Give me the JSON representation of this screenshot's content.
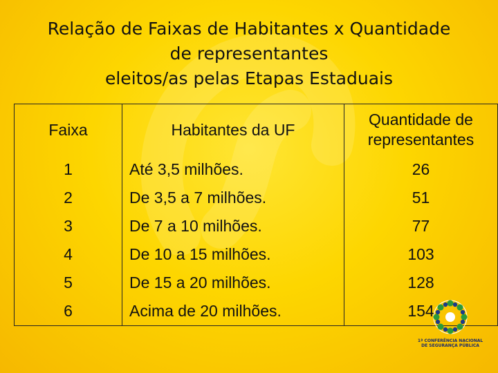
{
  "title": {
    "line1": "Relação de Faixas de Habitantes x Quantidade",
    "line2": "de representantes",
    "line3": "eleitos/as pelas Etapas Estaduais"
  },
  "table": {
    "headers": {
      "faixa": "Faixa",
      "habitantes": "Habitantes da UF",
      "quantidade_line1": "Quantidade de",
      "quantidade_line2": "representantes"
    },
    "rows": [
      {
        "faixa": "1",
        "habitantes": "Até 3,5 milhões.",
        "quantidade": "26"
      },
      {
        "faixa": "2",
        "habitantes": "De 3,5 a 7 milhões.",
        "quantidade": "51"
      },
      {
        "faixa": "3",
        "habitantes": "De 7 a 10 milhões.",
        "quantidade": "77"
      },
      {
        "faixa": "4",
        "habitantes": "De 10 a 15 milhões.",
        "quantidade": "103"
      },
      {
        "faixa": "5",
        "habitantes": "De 15 a 20 milhões.",
        "quantidade": "128"
      },
      {
        "faixa": "6",
        "habitantes": "Acima de 20 milhões.",
        "quantidade": "154"
      }
    ]
  },
  "logo": {
    "line1": "1ª CONFERÊNCIA NACIONAL",
    "line2": "DE SEGURANÇA PÚBLICA",
    "icon": "conference-logo-icon"
  },
  "colors": {
    "background": "#fdd600",
    "text": "#111111",
    "logo_blue": "#1a3a8a",
    "logo_green": "#2a9a3a"
  }
}
